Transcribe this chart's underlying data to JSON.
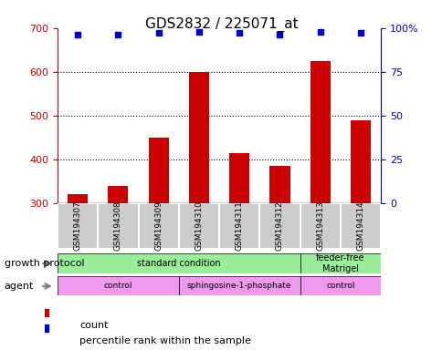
{
  "title": "GDS2832 / 225071_at",
  "samples": [
    "GSM194307",
    "GSM194308",
    "GSM194309",
    "GSM194310",
    "GSM194311",
    "GSM194312",
    "GSM194313",
    "GSM194314"
  ],
  "counts": [
    320,
    340,
    450,
    600,
    415,
    385,
    625,
    490
  ],
  "percentiles": [
    96,
    96,
    97,
    98,
    97,
    96,
    98,
    97
  ],
  "ylim_left": [
    300,
    700
  ],
  "ylim_right": [
    0,
    100
  ],
  "yticks_left": [
    300,
    400,
    500,
    600,
    700
  ],
  "yticks_right": [
    0,
    25,
    50,
    75,
    100
  ],
  "bar_color": "#cc0000",
  "dot_color": "#0000cc",
  "left_axis_color": "#cc0000",
  "right_axis_color": "#0000cc",
  "grid_color": "black",
  "sample_bg_color": "#cccccc",
  "growth_protocol_bg": "#99ee99",
  "agent_bg": "#ee99ee",
  "growth_protocol_labels": [
    {
      "text": "standard condition",
      "start": 0,
      "end": 6
    },
    {
      "text": "feeder-free\nMatrigel",
      "start": 6,
      "end": 8
    }
  ],
  "agent_labels": [
    {
      "text": "control",
      "start": 0,
      "end": 3
    },
    {
      "text": "sphingosine-1-phosphate",
      "start": 3,
      "end": 6
    },
    {
      "text": "control",
      "start": 6,
      "end": 8
    }
  ],
  "legend_count_label": "count",
  "legend_pct_label": "percentile rank within the sample",
  "row_label_growth": "growth protocol",
  "row_label_agent": "agent"
}
